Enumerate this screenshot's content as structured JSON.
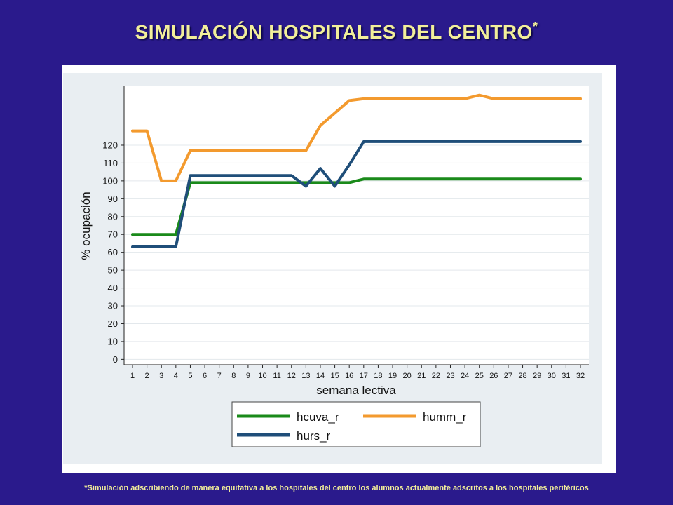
{
  "slide": {
    "title": "SIMULACIÓN HOSPITALES DEL CENTRO",
    "title_mark": "*",
    "footnote": "*Simulación adscribiendo de manera equitativa a  los hospitales del centro los alumnos actualmente adscritos a los hospitales periféricos"
  },
  "colors": {
    "background": "#2a1a8c",
    "title": "#f2ef9a",
    "plot_region": "#e9eef2",
    "hcuva_r": "#1a8a1a",
    "humm_r": "#f39a2e",
    "hurs_r": "#1f4e79"
  },
  "chart_data": {
    "type": "line",
    "xlabel": "semana lectiva",
    "ylabel": "% ocupación",
    "x": [
      1,
      2,
      3,
      4,
      5,
      6,
      7,
      8,
      9,
      10,
      11,
      12,
      13,
      14,
      15,
      16,
      17,
      18,
      19,
      20,
      21,
      22,
      23,
      24,
      25,
      26,
      27,
      28,
      29,
      30,
      31,
      32
    ],
    "xticks": [
      "1",
      "2",
      "3",
      "4",
      "5",
      "6",
      "7",
      "8",
      "9",
      "10",
      "11",
      "12",
      "13",
      "14",
      "15",
      "16",
      "17",
      "18",
      "19",
      "20",
      "21",
      "22",
      "23",
      "24",
      "25",
      "26",
      "27",
      "28",
      "29",
      "30",
      "31",
      "32"
    ],
    "yticks": [
      "0",
      "10",
      "20",
      "30",
      "40",
      "50",
      "60",
      "70",
      "80",
      "90",
      "100",
      "110",
      "120"
    ],
    "ylim": [
      -3,
      153
    ],
    "grid": true,
    "legend_position": "bottom",
    "series": [
      {
        "name": "hcuva_r",
        "color": "#1a8a1a",
        "values": [
          70,
          70,
          70,
          70,
          99,
          99,
          99,
          99,
          99,
          99,
          99,
          99,
          99,
          99,
          99,
          99,
          101,
          101,
          101,
          101,
          101,
          101,
          101,
          101,
          101,
          101,
          101,
          101,
          101,
          101,
          101,
          101
        ]
      },
      {
        "name": "humm_r",
        "color": "#f39a2e",
        "values": [
          128,
          128,
          100,
          100,
          117,
          117,
          117,
          117,
          117,
          117,
          117,
          117,
          117,
          131,
          138,
          145,
          146,
          146,
          146,
          146,
          146,
          146,
          146,
          146,
          148,
          146,
          146,
          146,
          146,
          146,
          146,
          146
        ]
      },
      {
        "name": "hurs_r",
        "color": "#1f4e79",
        "values": [
          63,
          63,
          63,
          63,
          103,
          103,
          103,
          103,
          103,
          103,
          103,
          103,
          97,
          107,
          97,
          109,
          122,
          122,
          122,
          122,
          122,
          122,
          122,
          122,
          122,
          122,
          122,
          122,
          122,
          122,
          122,
          122
        ]
      }
    ]
  }
}
